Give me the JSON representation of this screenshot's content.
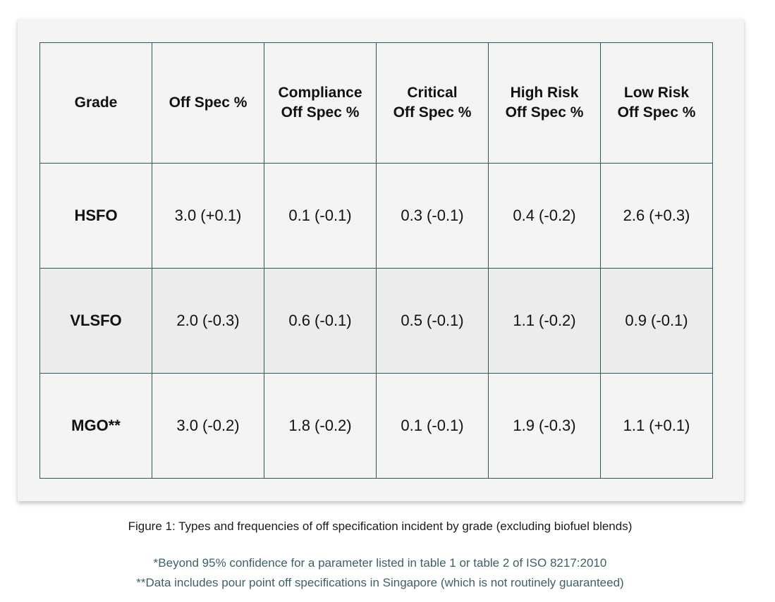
{
  "table": {
    "headers": [
      {
        "line1": "Grade",
        "line2": ""
      },
      {
        "line1": "Off Spec %",
        "line2": ""
      },
      {
        "line1": "Compliance",
        "line2": "Off Spec %"
      },
      {
        "line1": "Critical",
        "line2": "Off Spec %"
      },
      {
        "line1": "High Risk",
        "line2": "Off Spec %"
      },
      {
        "line1": "Low Risk",
        "line2": "Off Spec %"
      }
    ],
    "rows": [
      {
        "grade": "HSFO",
        "cells": [
          "3.0 (+0.1)",
          "0.1 (-0.1)",
          "0.3 (-0.1)",
          "0.4 (-0.2)",
          "2.6 (+0.3)"
        ]
      },
      {
        "grade": "VLSFO",
        "cells": [
          "2.0 (-0.3)",
          "0.6 (-0.1)",
          "0.5 (-0.1)",
          "1.1 (-0.2)",
          "0.9 (-0.1)"
        ]
      },
      {
        "grade": "MGO**",
        "cells": [
          "3.0 (-0.2)",
          "1.8 (-0.2)",
          "0.1 (-0.1)",
          "1.9 (-0.3)",
          "1.1 (+0.1)"
        ]
      }
    ]
  },
  "caption": "Figure 1: Types and frequencies of off specification incident by grade (excluding biofuel blends)",
  "footnotes": [
    "*Beyond 95% confidence for a parameter listed in table 1 or table 2 of ISO 8217:2010",
    "**Data includes pour point off specifications in Singapore (which is not routinely guaranteed)"
  ]
}
